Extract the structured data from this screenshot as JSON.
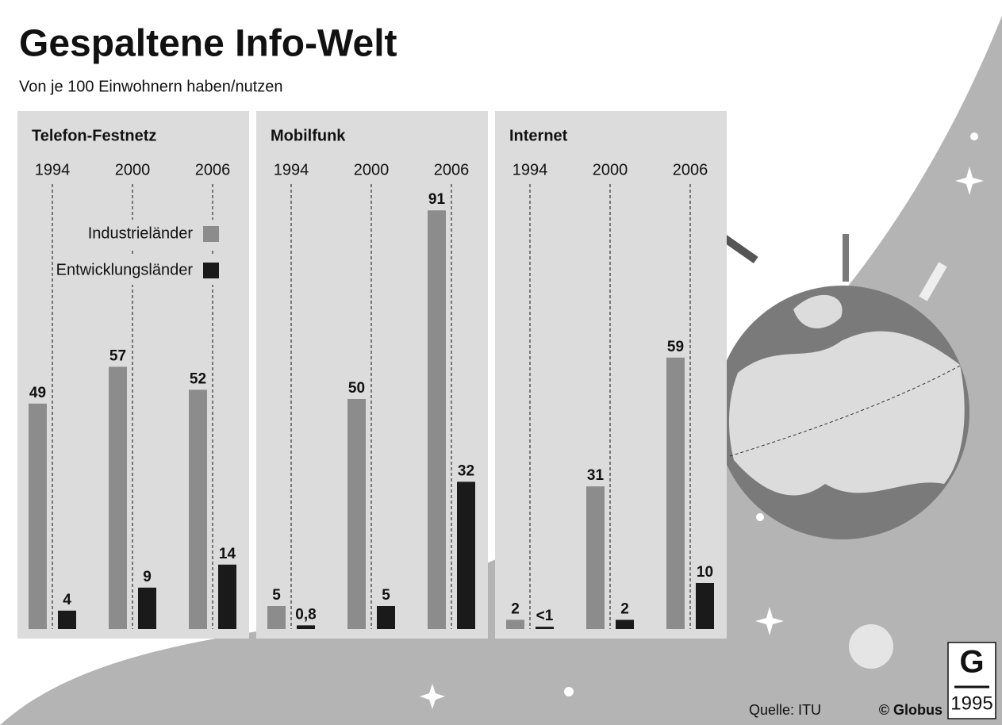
{
  "title": "Gespaltene Info-Welt",
  "subtitle": "Von je 100 Einwohnern haben/nutzen",
  "source": "Quelle: ITU",
  "credit": "© Globus",
  "logo_number": "1995",
  "chart_data": [
    {
      "type": "bar",
      "title": "Telefon-Festnetz",
      "categories": [
        "1994",
        "2000",
        "2006"
      ],
      "series": [
        {
          "name": "Industrieländer",
          "color": "#8c8c8c",
          "values": [
            49,
            57,
            52
          ]
        },
        {
          "name": "Entwicklungsländer",
          "color": "#1a1a1a",
          "values": [
            4,
            9,
            14
          ]
        }
      ]
    },
    {
      "type": "bar",
      "title": "Mobilfunk",
      "categories": [
        "1994",
        "2000",
        "2006"
      ],
      "series": [
        {
          "color": "#8c8c8c",
          "values": [
            5,
            50,
            91
          ]
        },
        {
          "color": "#1a1a1a",
          "values": [
            0.8,
            5,
            32
          ],
          "value_labels": [
            "0,8",
            "5",
            "32"
          ]
        }
      ]
    },
    {
      "type": "bar",
      "title": "Internet",
      "categories": [
        "1994",
        "2000",
        "2006"
      ],
      "series": [
        {
          "color": "#8c8c8c",
          "values": [
            2,
            31,
            59
          ]
        },
        {
          "color": "#1a1a1a",
          "values": [
            0.5,
            2,
            10
          ],
          "value_labels": [
            "<1",
            "2",
            "10"
          ]
        }
      ]
    }
  ]
}
